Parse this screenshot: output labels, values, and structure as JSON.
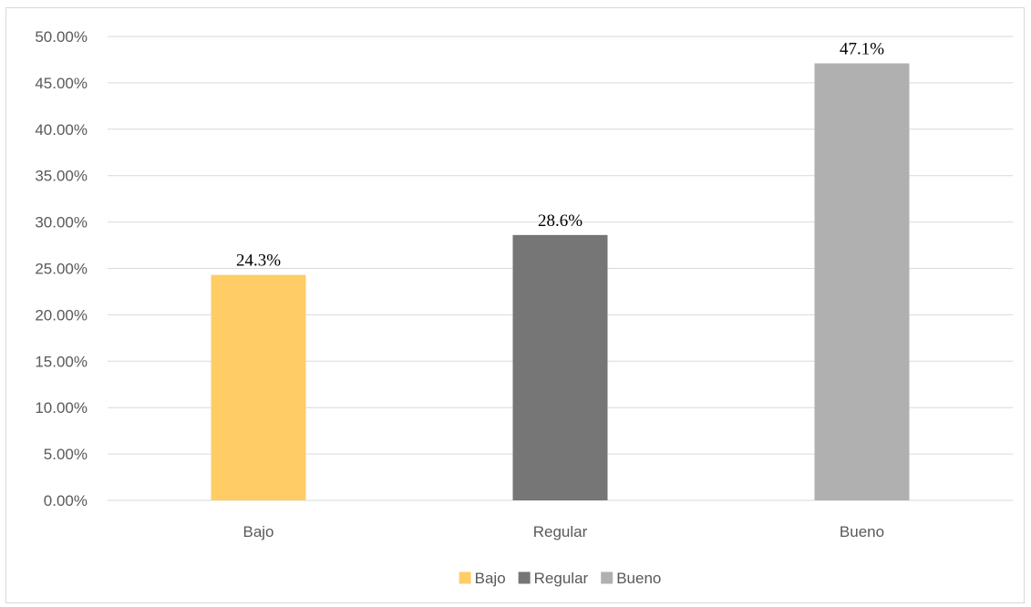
{
  "chart_data": {
    "type": "bar",
    "categories": [
      "Bajo",
      "Regular",
      "Bueno"
    ],
    "values": [
      24.3,
      28.6,
      47.1
    ],
    "data_labels": [
      "24.3%",
      "28.6%",
      "47.1%"
    ],
    "colors": [
      "#ffcc66",
      "#767676",
      "#b0b0b0"
    ],
    "ylim": [
      0,
      50
    ],
    "y_ticks": [
      0,
      5,
      10,
      15,
      20,
      25,
      30,
      35,
      40,
      45,
      50
    ],
    "y_tick_labels": [
      "0.00%",
      "5.00%",
      "10.00%",
      "15.00%",
      "20.00%",
      "25.00%",
      "30.00%",
      "35.00%",
      "40.00%",
      "45.00%",
      "50.00%"
    ],
    "grid": true,
    "gridline_color": "#d9d9d9",
    "legend": {
      "position": "bottom",
      "entries": [
        "Bajo",
        "Regular",
        "Bueno"
      ]
    },
    "title": "",
    "xlabel": "",
    "ylabel": ""
  }
}
